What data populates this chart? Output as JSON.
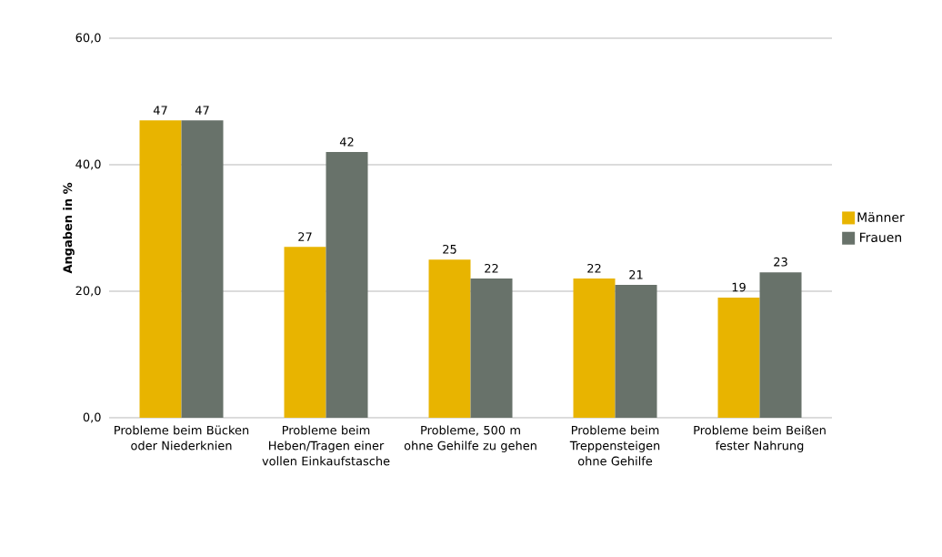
{
  "chart_data": {
    "type": "bar",
    "ylabel": "Angaben in %",
    "categories": [
      "Probleme beim Bücken oder Niederknien",
      "Probleme beim Heben/Tragen einer vollen Einkaufstasche",
      "Probleme, 500 m ohne Gehilfe zu gehen",
      "Probleme beim Treppensteigen ohne Gehilfe",
      "Probleme beim Beißen fester Nahrung"
    ],
    "series": [
      {
        "name": "Männer",
        "color": "#e8b400",
        "values": [
          47,
          27,
          25,
          22,
          19
        ]
      },
      {
        "name": "Frauen",
        "color": "#68726a",
        "values": [
          47,
          42,
          22,
          21,
          23
        ]
      }
    ],
    "ylim": [
      0,
      60
    ],
    "yticks": [
      {
        "value": 0,
        "label": "0,0"
      },
      {
        "value": 20,
        "label": "20,0"
      },
      {
        "value": 40,
        "label": "40,0"
      },
      {
        "value": 60,
        "label": "60,0"
      }
    ],
    "grid": "y",
    "legend": "right",
    "data_labels": true
  }
}
